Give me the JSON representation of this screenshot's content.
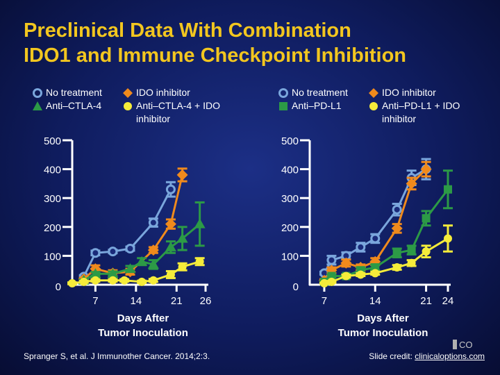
{
  "title": {
    "line1": "Preclinical Data With Combination",
    "line2": "IDO1 and Immune Checkpoint Inhibition"
  },
  "colors": {
    "title": "#f2c61f",
    "blue": "#7aa6dc",
    "orange": "#f08a1c",
    "green": "#2c9a46",
    "yellow": "#f5ec3a",
    "axis": "#ffffff"
  },
  "legend_left": [
    {
      "marker": "circle-open",
      "color": "#7aa6dc",
      "label": "No treatment"
    },
    {
      "marker": "diamond",
      "color": "#f08a1c",
      "label": "IDO inhibitor"
    },
    {
      "marker": "triangle",
      "color": "#2c9a46",
      "label": "Anti–CTLA-4"
    },
    {
      "marker": "circle",
      "color": "#f5ec3a",
      "label": "Anti–CTLA-4 + IDO inhibitor"
    }
  ],
  "legend_right": [
    {
      "marker": "circle-open",
      "color": "#7aa6dc",
      "label": "No treatment"
    },
    {
      "marker": "diamond",
      "color": "#f08a1c",
      "label": "IDO inhibitor"
    },
    {
      "marker": "square",
      "color": "#2c9a46",
      "label": "Anti–PD-L1"
    },
    {
      "marker": "circle",
      "color": "#f5ec3a",
      "label": "Anti–PD-L1 + IDO inhibitor"
    }
  ],
  "chart_data": [
    {
      "type": "line",
      "xlabel": "Days After\nTumor Inoculation",
      "ylabel": "",
      "ylim": [
        0,
        500
      ],
      "yticks": [
        0,
        100,
        200,
        300,
        400,
        500
      ],
      "xticks": [
        7,
        14,
        21,
        26
      ],
      "series": [
        {
          "name": "No treatment",
          "marker": "circle-open",
          "color": "#7aa6dc",
          "x": [
            5,
            7,
            10,
            13,
            17,
            20
          ],
          "y": [
            28,
            110,
            115,
            125,
            215,
            330
          ],
          "err": [
            5,
            8,
            6,
            7,
            14,
            25
          ]
        },
        {
          "name": "IDO inhibitor",
          "marker": "diamond",
          "color": "#f08a1c",
          "x": [
            5,
            7,
            10,
            13,
            17,
            20,
            22
          ],
          "y": [
            20,
            55,
            40,
            45,
            120,
            210,
            380
          ],
          "err": [
            4,
            12,
            10,
            10,
            10,
            16,
            22
          ]
        },
        {
          "name": "Anti–CTLA-4",
          "marker": "triangle",
          "color": "#2c9a46",
          "x": [
            5,
            7,
            10,
            13,
            15,
            17,
            20,
            22,
            25
          ],
          "y": [
            15,
            38,
            38,
            55,
            80,
            70,
            130,
            160,
            210
          ],
          "err": [
            3,
            6,
            8,
            10,
            12,
            15,
            20,
            40,
            75
          ]
        },
        {
          "name": "Anti–CTLA-4 + IDO inhibitor",
          "marker": "circle",
          "color": "#f5ec3a",
          "x": [
            3,
            5,
            7,
            10,
            12,
            15,
            17,
            20,
            22,
            25
          ],
          "y": [
            5,
            10,
            15,
            15,
            15,
            10,
            15,
            35,
            62,
            80
          ],
          "err": [
            3,
            3,
            4,
            4,
            4,
            4,
            5,
            12,
            12,
            12
          ]
        }
      ]
    },
    {
      "type": "line",
      "xlabel": "Days After\nTumor Inoculation",
      "ylabel": "",
      "ylim": [
        0,
        500
      ],
      "yticks": [
        0,
        100,
        200,
        300,
        400,
        500
      ],
      "xticks": [
        7,
        14,
        21,
        24
      ],
      "series": [
        {
          "name": "No treatment",
          "marker": "circle-open",
          "color": "#7aa6dc",
          "x": [
            7,
            8,
            10,
            12,
            14,
            17,
            19,
            21
          ],
          "y": [
            40,
            85,
            100,
            130,
            160,
            260,
            370,
            400
          ],
          "err": [
            5,
            15,
            12,
            15,
            15,
            20,
            25,
            35
          ]
        },
        {
          "name": "IDO inhibitor",
          "marker": "diamond",
          "color": "#f08a1c",
          "x": [
            7,
            8,
            10,
            12,
            14,
            17,
            19,
            21
          ],
          "y": [
            15,
            50,
            75,
            60,
            80,
            195,
            350,
            400
          ],
          "err": [
            4,
            10,
            12,
            10,
            12,
            15,
            20,
            25
          ]
        },
        {
          "name": "Anti–PD-L1",
          "marker": "square",
          "color": "#2c9a46",
          "x": [
            7,
            8,
            10,
            12,
            14,
            17,
            19,
            21,
            24
          ],
          "y": [
            10,
            30,
            30,
            50,
            60,
            110,
            120,
            230,
            330
          ],
          "err": [
            3,
            5,
            5,
            10,
            10,
            15,
            15,
            25,
            65
          ]
        },
        {
          "name": "Anti–PD-L1 + IDO inhibitor",
          "marker": "circle",
          "color": "#f5ec3a",
          "x": [
            7,
            8,
            10,
            12,
            14,
            17,
            19,
            21,
            24
          ],
          "y": [
            5,
            10,
            30,
            35,
            40,
            60,
            75,
            115,
            160
          ],
          "err": [
            2,
            3,
            5,
            5,
            5,
            8,
            10,
            20,
            45
          ]
        }
      ]
    }
  ],
  "footer": {
    "citation": "Spranger S, et al. J Immunother Cancer. 2014;2:3.",
    "credit_label": "Slide credit: ",
    "credit_link": "clinicaloptions.com"
  }
}
